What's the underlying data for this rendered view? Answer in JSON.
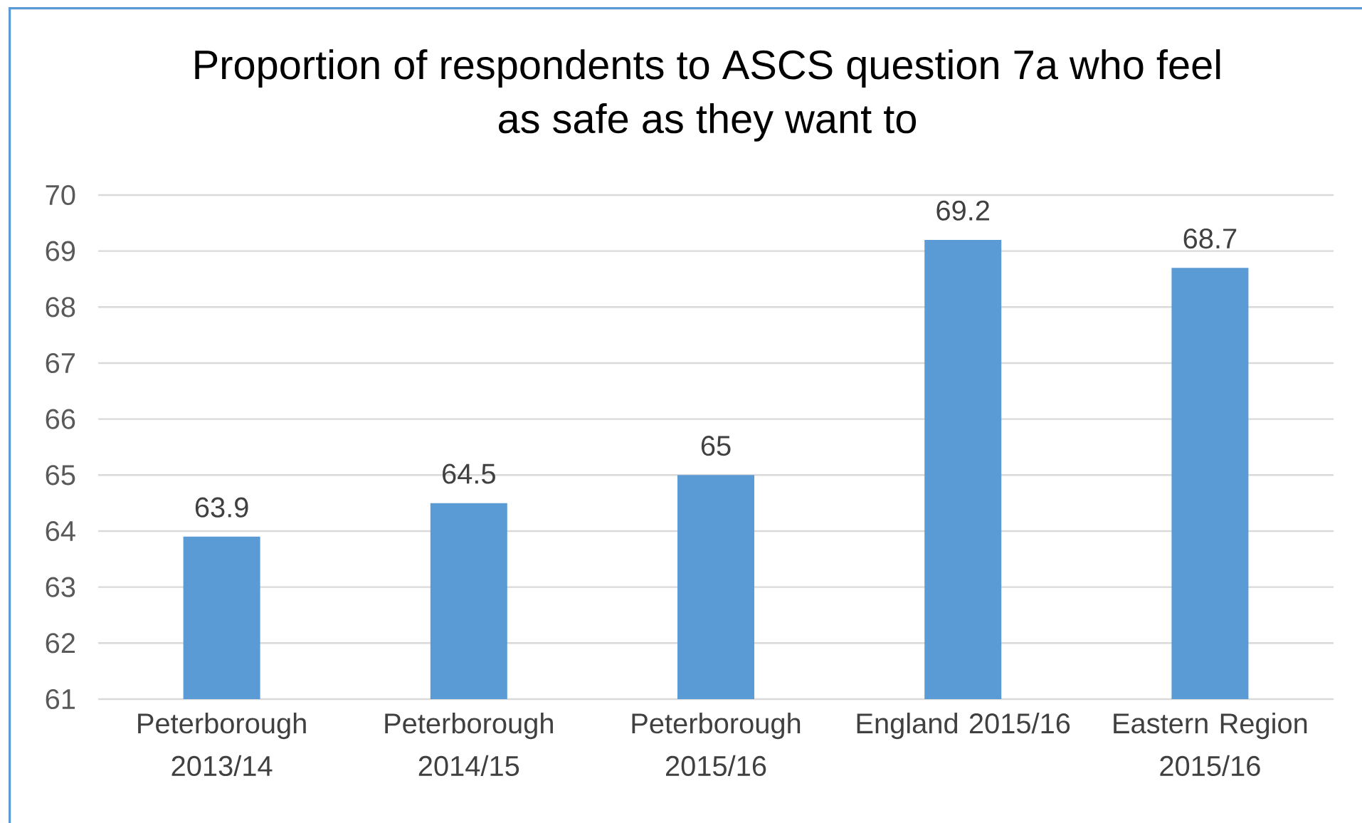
{
  "chart_data": {
    "type": "bar",
    "title": "Proportion of respondents to ASCS question 7a who feel as safe as they want to",
    "categories": [
      "Peterborough 2013/14",
      "Peterborough 2014/15",
      "Peterborough 2015/16",
      "England 2015/16",
      "Eastern Region 2015/16"
    ],
    "values": [
      63.9,
      64.5,
      65,
      69.2,
      68.7
    ],
    "color": "#5b9bd5",
    "ylim": [
      61,
      70
    ],
    "yticks": [
      61,
      62,
      63,
      64,
      65,
      66,
      67,
      68,
      69,
      70
    ],
    "grid": "y",
    "data_labels": true
  }
}
